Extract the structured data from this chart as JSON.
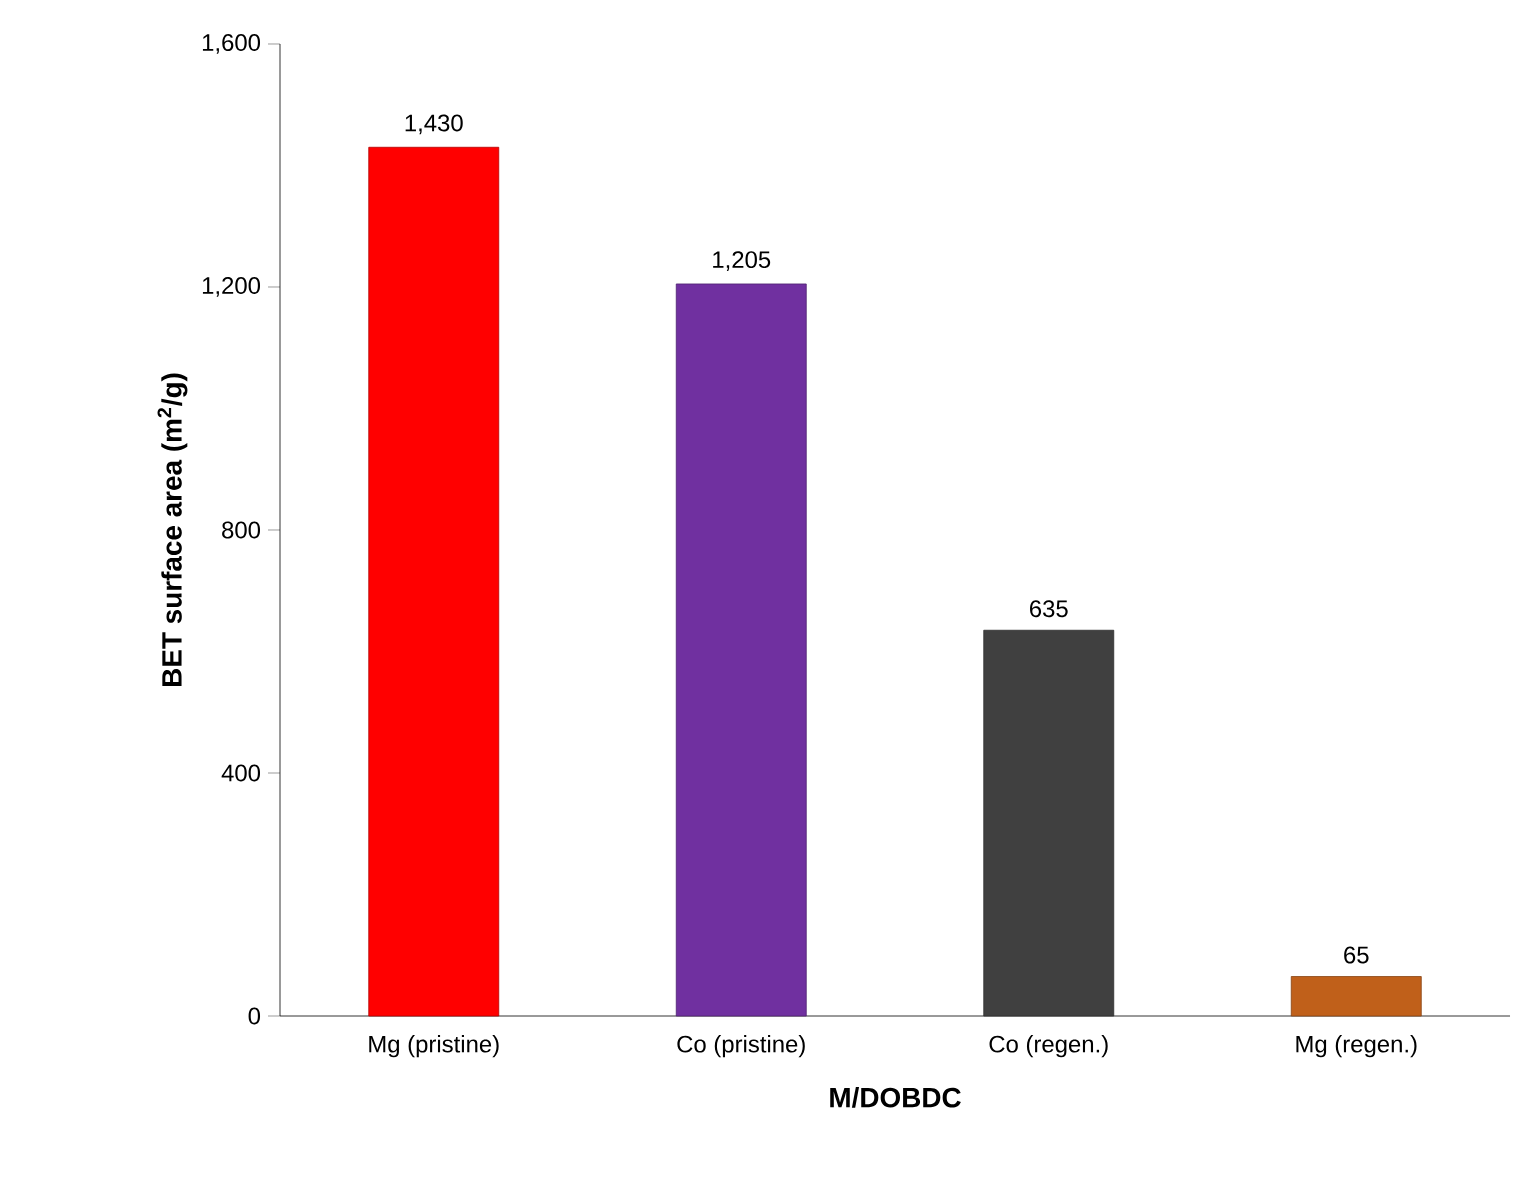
{
  "chart_data": {
    "type": "bar",
    "xlabel": "M/DOBDC",
    "ylabel": "BET surface area (m$^{2}$/g)",
    "categories": [
      "Mg (pristine)",
      "Co (pristine)",
      "Co (regen.)",
      "Mg (regen.)"
    ],
    "values": [
      1430,
      1205,
      635,
      65
    ],
    "value_labels": [
      "1,430",
      "1,205",
      "635",
      "65"
    ],
    "colors": [
      "#ff0000",
      "#7030a0",
      "#404040",
      "#c0601a"
    ],
    "ylim": [
      0,
      1600
    ],
    "yticks": [
      {
        "value": 0,
        "label": "0"
      },
      {
        "value": 400,
        "label": "400"
      },
      {
        "value": 800,
        "label": "800"
      },
      {
        "value": 1200,
        "label": "1,200"
      },
      {
        "value": 1600,
        "label": "1,600"
      }
    ]
  }
}
